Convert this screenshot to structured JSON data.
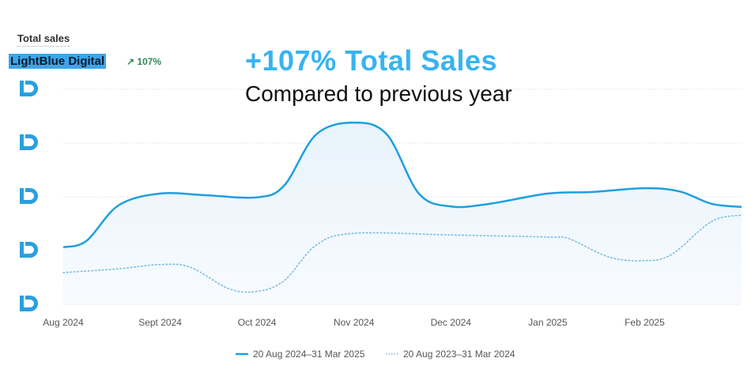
{
  "header": {
    "title": "Total sales",
    "brand": "LightBlue Digital",
    "change": "↗ 107%",
    "headline": "+107% Total Sales",
    "subheadline": "Compared to previous year"
  },
  "colors": {
    "current": "#1e9fe0",
    "previous": "#7bbbe0",
    "grid": "#e6e6e6",
    "logo": "#2a9fe0"
  },
  "chart_data": {
    "type": "line",
    "title": "Total sales",
    "xlabel": "",
    "ylabel": "",
    "ylim": [
      0,
      4
    ],
    "y_tick_labels": "logo-icons",
    "categories": [
      "Aug 2024",
      "Sept 2024",
      "Oct 2024",
      "Nov 2024",
      "Dec 2024",
      "Jan 2025",
      "Feb 2025"
    ],
    "grid": true,
    "legend": "bottom-center",
    "series": [
      {
        "name": "20 Aug 2024–31 Mar 2025",
        "style": "solid",
        "x": [
          0,
          0.24,
          0.57,
          1,
          1.47,
          2,
          2.28,
          2.61,
          3,
          3.34,
          3.67,
          4,
          4.4,
          5,
          5.46,
          6,
          6.36,
          6.69,
          7
        ],
        "values": [
          1.06,
          1.18,
          1.84,
          2.06,
          2.03,
          1.99,
          2.21,
          3.16,
          3.38,
          3.16,
          2.06,
          1.82,
          1.87,
          2.06,
          2.09,
          2.16,
          2.1,
          1.87,
          1.81
        ]
      },
      {
        "name": "20 Aug 2023–31 Mar 2024",
        "style": "dotted",
        "x": [
          0,
          0.57,
          1,
          1.31,
          1.71,
          2,
          2.28,
          2.61,
          3,
          4,
          5,
          5.22,
          5.63,
          6,
          6.28,
          6.69,
          7
        ],
        "values": [
          0.59,
          0.66,
          0.74,
          0.69,
          0.29,
          0.24,
          0.44,
          1.1,
          1.32,
          1.29,
          1.25,
          1.22,
          0.88,
          0.81,
          0.93,
          1.54,
          1.66
        ]
      }
    ]
  }
}
